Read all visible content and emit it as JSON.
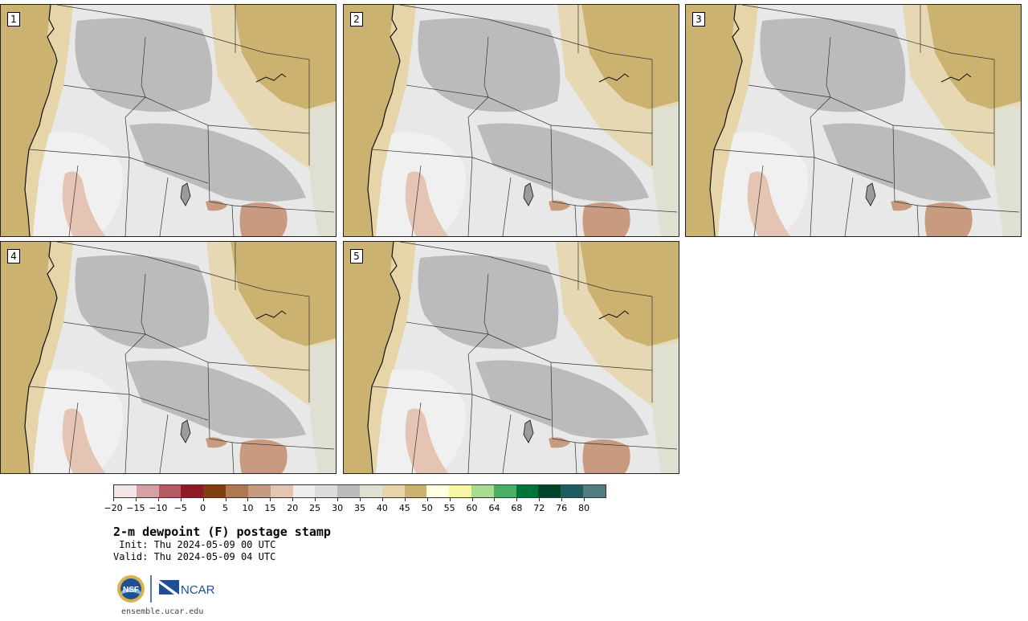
{
  "panels": [
    "1",
    "2",
    "3",
    "4",
    "5"
  ],
  "colorbar": {
    "colors": [
      "#f3e6e6",
      "#d7a0a5",
      "#b45a62",
      "#8c1b25",
      "#7f3f10",
      "#b0784f",
      "#c89a80",
      "#e4c5b4",
      "#eeeeee",
      "#dddddd",
      "#bbbbbb",
      "#e0e0d2",
      "#e5d5a8",
      "#cbb271",
      "#fffee0",
      "#f7f7a6",
      "#a9dc90",
      "#4bae62",
      "#00753b",
      "#00422a",
      "#1e5d5f",
      "#4f7d80"
    ],
    "labels": [
      "−20",
      "−15",
      "−10",
      "−5",
      "0",
      "5",
      "10",
      "15",
      "20",
      "25",
      "30",
      "35",
      "40",
      "45",
      "50",
      "55",
      "60",
      "64",
      "68",
      "72",
      "76",
      "80"
    ]
  },
  "title": "2-m dewpoint (F) postage stamp",
  "init": " Init: Thu 2024-05-09 00 UTC",
  "valid": "Valid: Thu 2024-05-09 04 UTC",
  "logos": {
    "left": "NSF",
    "right": "NCAR"
  },
  "url": "ensemble.ucar.edu"
}
